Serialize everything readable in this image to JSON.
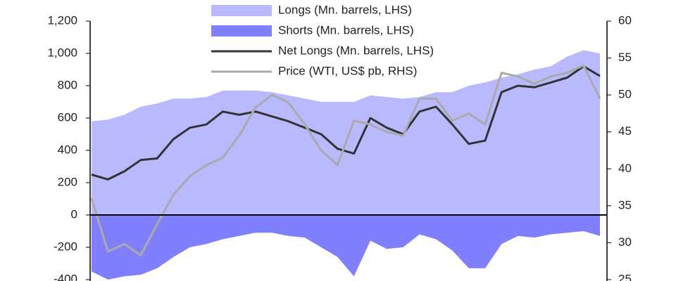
{
  "chart_data": {
    "type": "area",
    "categories": [
      null,
      null,
      null,
      null,
      null,
      null,
      null,
      null,
      null,
      null,
      null,
      null,
      null,
      null,
      null,
      null,
      null,
      null,
      null,
      null,
      null,
      null,
      null,
      null,
      null,
      null,
      null,
      null,
      null,
      null,
      null,
      null
    ],
    "series": [
      {
        "name": "Longs (Mn. barrels, LHS)",
        "type": "area",
        "color": "#b9b9ff",
        "values": [
          580,
          590,
          620,
          670,
          690,
          720,
          720,
          730,
          770,
          770,
          770,
          760,
          740,
          720,
          700,
          700,
          700,
          740,
          730,
          720,
          730,
          760,
          760,
          800,
          820,
          850,
          870,
          900,
          920,
          980,
          1020,
          1000
        ]
      },
      {
        "name": "Shorts (Mn. barrels, LHS)",
        "type": "area",
        "color": "#8080ff",
        "values": [
          -350,
          -400,
          -380,
          -370,
          -330,
          -260,
          -200,
          -180,
          -150,
          -130,
          -110,
          -110,
          -130,
          -140,
          -200,
          -260,
          -380,
          -160,
          -210,
          -200,
          -120,
          -150,
          -220,
          -330,
          -330,
          -180,
          -130,
          -140,
          -120,
          -110,
          -100,
          -130
        ]
      },
      {
        "name": "Net Longs (Mn. barrels, LHS)",
        "type": "line",
        "color": "#333333",
        "values": [
          250,
          220,
          270,
          340,
          350,
          470,
          540,
          560,
          640,
          620,
          640,
          610,
          580,
          540,
          500,
          410,
          380,
          600,
          540,
          500,
          640,
          670,
          560,
          440,
          460,
          760,
          800,
          790,
          820,
          850,
          920,
          860
        ]
      },
      {
        "name": "Price (WTI, US$ pb, RHS)",
        "type": "line",
        "color": "#aaaaaa",
        "axis": "y2",
        "values": [
          36,
          28.8,
          29.8,
          28.3,
          32.5,
          36.5,
          39,
          40.5,
          41.5,
          44.5,
          48.3,
          50,
          49,
          46,
          42.5,
          40.5,
          46.5,
          46,
          45,
          44.5,
          49.5,
          49.5,
          46.5,
          47.5,
          46,
          53,
          52.5,
          51.5,
          52.5,
          53,
          54,
          49.5
        ]
      }
    ],
    "ylim": [
      -400,
      1200
    ],
    "yticks": [
      -400,
      -200,
      0,
      200,
      400,
      600,
      800,
      {
        "value": 1000,
        "label": "1,000"
      },
      {
        "value": 1200,
        "label": "1,200"
      }
    ],
    "y2lim": [
      25,
      60
    ],
    "y2ticks": [
      25,
      30,
      35,
      40,
      45,
      50,
      55,
      60
    ]
  }
}
